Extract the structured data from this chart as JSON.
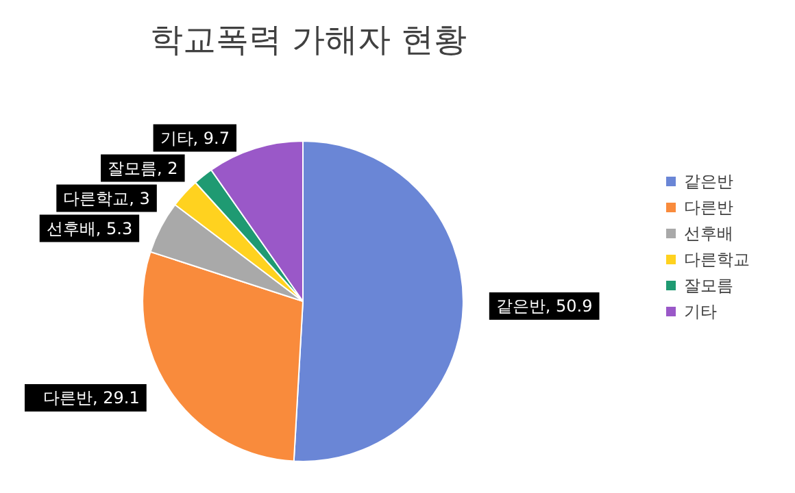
{
  "chart_data": {
    "type": "pie",
    "title": "학교폭력 가해자 현황",
    "categories": [
      "같은반",
      "다른반",
      "선후배",
      "다른학교",
      "잘모름",
      "기타"
    ],
    "values": [
      50.9,
      29.1,
      5.3,
      3,
      2,
      9.7
    ],
    "colors": [
      "#6a86d6",
      "#f98b3c",
      "#a9a9a9",
      "#ffd21f",
      "#1f9a72",
      "#9a58c8"
    ],
    "value_labels": [
      ", 50.9",
      ", 29.1",
      ", 5.3",
      ", 3",
      ", 2",
      ", 9.7"
    ],
    "legend": "right"
  }
}
